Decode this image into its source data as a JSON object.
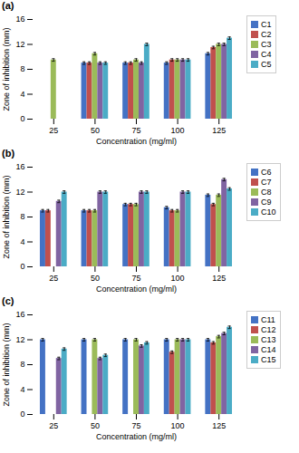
{
  "chart_data": [
    {
      "type": "bar",
      "title": "(a)",
      "xlabel": "Concentration (mg/ml)",
      "ylabel": "Zone of inhibition (mm)",
      "categories": [
        "25",
        "50",
        "75",
        "100",
        "125"
      ],
      "series": [
        {
          "name": "C1",
          "color": "#4472C4",
          "values": [
            0,
            9.0,
            9.0,
            9.0,
            10.5
          ],
          "errors": [
            0,
            0.2,
            0.2,
            0.2,
            0.2
          ]
        },
        {
          "name": "C2",
          "color": "#C0504D",
          "values": [
            0,
            9.0,
            9.0,
            9.5,
            11.5
          ],
          "errors": [
            0,
            0.2,
            0.2,
            0.2,
            0.2
          ]
        },
        {
          "name": "C3",
          "color": "#9BBB59",
          "values": [
            9.5,
            10.5,
            9.5,
            9.5,
            12.0
          ],
          "errors": [
            0.2,
            0.2,
            0.2,
            0.2,
            0.2
          ]
        },
        {
          "name": "C4",
          "color": "#8064A2",
          "values": [
            0,
            9.0,
            9.0,
            9.5,
            12.0
          ],
          "errors": [
            0,
            0.2,
            0.2,
            0.2,
            0.2
          ]
        },
        {
          "name": "C5",
          "color": "#4BACC6",
          "values": [
            0,
            9.0,
            12.0,
            9.5,
            13.0
          ],
          "errors": [
            0,
            0.2,
            0.2,
            0.2,
            0.2
          ]
        }
      ],
      "ylim": [
        0,
        16
      ],
      "yticks": [
        0,
        4,
        8,
        12,
        16
      ],
      "grid": false,
      "legend": "right"
    },
    {
      "type": "bar",
      "title": "(b)",
      "xlabel": "Concentration (mg/ml)",
      "ylabel": "Zone of inhibition (mm)",
      "categories": [
        "25",
        "50",
        "75",
        "100",
        "125"
      ],
      "series": [
        {
          "name": "C6",
          "color": "#4472C4",
          "values": [
            9.0,
            9.0,
            10.0,
            9.5,
            11.5
          ],
          "errors": [
            0.2,
            0.2,
            0.2,
            0.2,
            0.2
          ]
        },
        {
          "name": "C7",
          "color": "#C0504D",
          "values": [
            9.0,
            9.0,
            10.0,
            9.0,
            10.0
          ],
          "errors": [
            0.2,
            0.2,
            0.2,
            0.2,
            0.2
          ]
        },
        {
          "name": "C8",
          "color": "#9BBB59",
          "values": [
            0,
            9.0,
            10.0,
            9.0,
            11.5
          ],
          "errors": [
            0,
            0.2,
            0.2,
            0.2,
            0.2
          ]
        },
        {
          "name": "C9",
          "color": "#8064A2",
          "values": [
            10.5,
            12.0,
            12.0,
            12.0,
            14.0
          ],
          "errors": [
            0.2,
            0.2,
            0.2,
            0.2,
            0.2
          ]
        },
        {
          "name": "C10",
          "color": "#4BACC6",
          "values": [
            12.0,
            12.0,
            12.0,
            12.0,
            12.5
          ],
          "errors": [
            0.2,
            0.2,
            0.2,
            0.2,
            0.2
          ]
        }
      ],
      "ylim": [
        0,
        16
      ],
      "yticks": [
        0,
        4,
        8,
        12,
        16
      ],
      "grid": false,
      "legend": "right"
    },
    {
      "type": "bar",
      "title": "(c)",
      "xlabel": "Concentration (mg/ml)",
      "ylabel": "Zone of inhibition (mm)",
      "categories": [
        "25",
        "50",
        "75",
        "100",
        "125"
      ],
      "series": [
        {
          "name": "C11",
          "color": "#4472C4",
          "values": [
            12.0,
            12.0,
            12.0,
            12.0,
            12.0
          ],
          "errors": [
            0.2,
            0.2,
            0.2,
            0.2,
            0.2
          ]
        },
        {
          "name": "C12",
          "color": "#C0504D",
          "values": [
            0,
            0,
            0,
            10.0,
            11.5
          ],
          "errors": [
            0,
            0,
            0,
            0.2,
            0.2
          ]
        },
        {
          "name": "C13",
          "color": "#9BBB59",
          "values": [
            0,
            12.0,
            12.0,
            12.0,
            12.5
          ],
          "errors": [
            0,
            0.2,
            0.2,
            0.2,
            0.2
          ]
        },
        {
          "name": "C14",
          "color": "#8064A2",
          "values": [
            9.0,
            9.0,
            11.0,
            12.0,
            13.0
          ],
          "errors": [
            0.2,
            0.2,
            0.2,
            0.2,
            0.2
          ]
        },
        {
          "name": "C15",
          "color": "#4BACC6",
          "values": [
            10.5,
            9.5,
            11.5,
            12.0,
            14.0
          ],
          "errors": [
            0.2,
            0.2,
            0.2,
            0.2,
            0.2
          ]
        }
      ],
      "ylim": [
        0,
        16
      ],
      "yticks": [
        0,
        4,
        8,
        12,
        16
      ],
      "grid": false,
      "legend": "right"
    }
  ]
}
